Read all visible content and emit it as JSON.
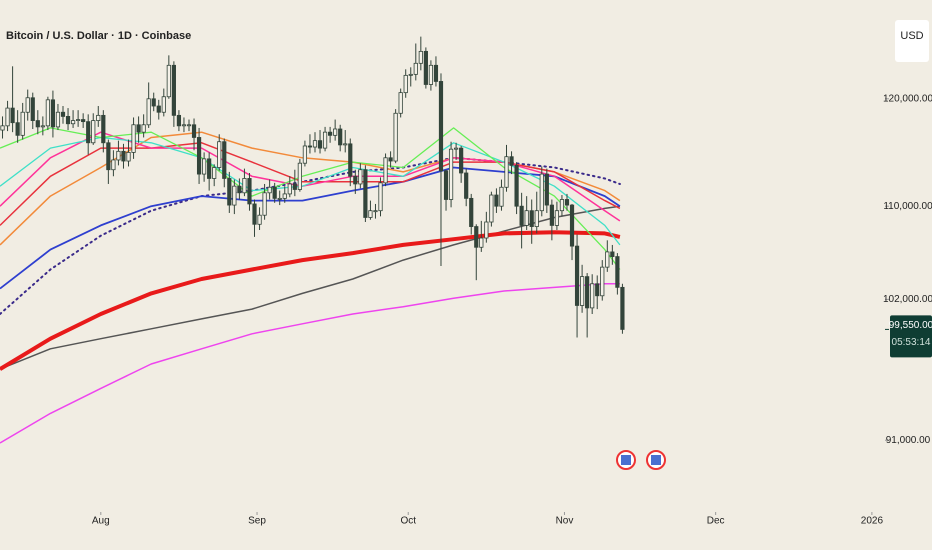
{
  "chart_data": {
    "type": "candlestick",
    "title": "Bitcoin / U.S. Dollar · 1D · Coinbase",
    "currency": "USD",
    "log_scale": true,
    "xlim": [
      0,
      175.6
    ],
    "xticks": [
      {
        "value": 20,
        "label": "Aug"
      },
      {
        "value": 51,
        "label": "Sep"
      },
      {
        "value": 81,
        "label": "Oct"
      },
      {
        "value": 112,
        "label": "Nov"
      },
      {
        "value": 142,
        "label": "Dec"
      },
      {
        "value": 173,
        "label": "2026"
      }
    ],
    "ylim": [
      86000,
      130000
    ],
    "yticks": [
      {
        "value": 120000,
        "label": "120,000.00"
      },
      {
        "value": 110000,
        "label": "110,000.00"
      },
      {
        "value": 102000,
        "label": "102,000.00"
      },
      {
        "value": 91000,
        "label": "91,000.00"
      }
    ],
    "candles": {
      "up_color": "#f4f1e8",
      "down_color": "#33443a",
      "open": [
        117000,
        117400,
        119100,
        117700,
        116500,
        118700,
        120100,
        117900,
        117300,
        117400,
        119900,
        117300,
        118700,
        118300,
        117600,
        117900,
        118000,
        117800,
        115800,
        117900,
        118400,
        115800,
        113300,
        114200,
        115000,
        114100,
        114900,
        117500,
        116800,
        117500,
        120000,
        119300,
        118700,
        120200,
        123300,
        118400,
        117400,
        117500,
        117500,
        116300,
        112900,
        114300,
        112500,
        113500,
        115900,
        112500,
        110100,
        111800,
        111200,
        112500,
        110200,
        108400,
        109200,
        111200,
        111700,
        110700,
        110700,
        111100,
        112000,
        111500,
        113900,
        115500,
        115400,
        116000,
        115300,
        116800,
        116500,
        117100,
        115600,
        115700,
        112700,
        112000,
        113300,
        109000,
        109600,
        109600,
        112100,
        114400,
        114100,
        118600,
        120600,
        122300,
        122400,
        123500,
        124700,
        121400,
        123300,
        121700,
        113200,
        110600,
        115200,
        115300,
        113000,
        110700,
        108200,
        106400,
        107200,
        108600,
        111000,
        110000,
        111700,
        114500,
        113700,
        110000,
        108300,
        109600,
        108200,
        109600,
        112900,
        110100,
        108300,
        109600,
        110600,
        110100,
        106500,
        101500,
        103900,
        101300,
        103300,
        102300,
        104700,
        106000,
        105600,
        103000
      ],
      "high": [
        118300,
        119800,
        123200,
        118900,
        119600,
        120900,
        120600,
        118900,
        118300,
        120200,
        120800,
        119500,
        119300,
        119100,
        118900,
        118900,
        118600,
        118500,
        118600,
        119300,
        118900,
        116100,
        115100,
        116000,
        115700,
        116100,
        118200,
        118300,
        118500,
        121600,
        120600,
        119900,
        121000,
        124300,
        123700,
        118900,
        118200,
        118000,
        118100,
        117200,
        114900,
        114900,
        113800,
        116600,
        116200,
        113100,
        112400,
        112500,
        113400,
        113000,
        110600,
        109900,
        112000,
        112400,
        112100,
        111400,
        111800,
        112700,
        113300,
        114300,
        116000,
        116600,
        116800,
        117000,
        117300,
        117300,
        118000,
        117500,
        117000,
        116200,
        113300,
        113900,
        113700,
        110500,
        110200,
        112600,
        114800,
        115000,
        119000,
        121000,
        122900,
        123100,
        125500,
        126200,
        125100,
        123800,
        124200,
        122500,
        113300,
        115900,
        115800,
        115500,
        113400,
        111100,
        108400,
        108700,
        109500,
        111300,
        111600,
        112400,
        115600,
        115000,
        114000,
        111200,
        110900,
        110600,
        111300,
        113600,
        113400,
        110600,
        110400,
        111000,
        111100,
        110200,
        107500,
        104900,
        104200,
        104100,
        104000,
        105300,
        107000,
        106600,
        105900,
        103300
      ],
      "low": [
        116200,
        116900,
        116800,
        115800,
        116100,
        117900,
        117100,
        116600,
        116500,
        117000,
        116300,
        117000,
        117600,
        117000,
        117200,
        117300,
        117200,
        114700,
        115600,
        117300,
        114900,
        112000,
        112700,
        113700,
        113400,
        113600,
        114300,
        115800,
        116300,
        117200,
        118800,
        118000,
        118300,
        120000,
        117300,
        116900,
        116800,
        116900,
        115100,
        112000,
        112200,
        111400,
        111800,
        113200,
        111700,
        109400,
        109300,
        110600,
        110900,
        109600,
        107300,
        107900,
        108800,
        110600,
        110300,
        110100,
        110300,
        110800,
        110900,
        111300,
        113600,
        114800,
        114900,
        114800,
        115000,
        115800,
        116000,
        115000,
        114900,
        111800,
        111100,
        111600,
        108600,
        108800,
        108900,
        109100,
        111800,
        113500,
        113900,
        118200,
        120100,
        121200,
        121800,
        122800,
        121000,
        120800,
        121200,
        104800,
        109600,
        109900,
        114200,
        112100,
        110000,
        107500,
        103600,
        106000,
        106800,
        108200,
        109400,
        109600,
        111300,
        112900,
        109300,
        106300,
        107900,
        106700,
        107600,
        109100,
        109400,
        107000,
        107900,
        109100,
        109600,
        105300,
        98900,
        100900,
        98900,
        100800,
        101200,
        101900,
        104300,
        104900,
        102400,
        99200
      ],
      "close": [
        117400,
        119100,
        117700,
        116500,
        118700,
        120100,
        117900,
        117300,
        117400,
        119900,
        117300,
        118700,
        118300,
        117600,
        117900,
        118000,
        117800,
        115800,
        117900,
        118400,
        115800,
        113300,
        114200,
        115000,
        114100,
        114900,
        117500,
        116800,
        117500,
        120000,
        119300,
        118700,
        120200,
        123300,
        118400,
        117400,
        117500,
        117500,
        116300,
        112900,
        114300,
        112500,
        113500,
        115900,
        112500,
        110100,
        111800,
        111200,
        112500,
        110200,
        108400,
        109200,
        111200,
        111700,
        110700,
        110700,
        111100,
        112000,
        111500,
        113900,
        115500,
        115400,
        116000,
        115300,
        116800,
        116500,
        117100,
        115600,
        115700,
        112700,
        112000,
        113300,
        109000,
        109600,
        109600,
        112100,
        114400,
        114100,
        118600,
        120600,
        122300,
        122400,
        123500,
        124700,
        121400,
        123300,
        121700,
        113200,
        110600,
        115200,
        115300,
        113000,
        110700,
        108200,
        106400,
        107200,
        108600,
        111000,
        110000,
        111700,
        114500,
        113700,
        110000,
        108300,
        109600,
        108200,
        109600,
        112900,
        110100,
        108300,
        109600,
        110600,
        110100,
        106500,
        101500,
        103900,
        101300,
        103300,
        102300,
        104700,
        106000,
        105600,
        103000,
        99550
      ]
    },
    "series": [
      {
        "color": "#ee44ee",
        "width": 1.5,
        "x": [
          0,
          10,
          20,
          30,
          40,
          50,
          60,
          70,
          80,
          90,
          100,
          110,
          120,
          123
        ],
        "values": [
          90800,
          93000,
          94900,
          96800,
          98000,
          99200,
          100000,
          100800,
          101400,
          102100,
          102700,
          103000,
          103300,
          103300
        ]
      },
      {
        "color": "#555555",
        "width": 1.5,
        "x": [
          0,
          10,
          20,
          30,
          40,
          50,
          60,
          70,
          80,
          90,
          100,
          110,
          120,
          123
        ],
        "values": [
          96400,
          98000,
          98800,
          99600,
          100400,
          101200,
          102500,
          103700,
          105300,
          106600,
          107800,
          109000,
          109800,
          110000
        ]
      },
      {
        "color": "#e81a1a",
        "width": 4,
        "x": [
          0,
          10,
          20,
          30,
          40,
          50,
          60,
          70,
          80,
          90,
          100,
          110,
          120,
          123
        ],
        "values": [
          96400,
          98800,
          100800,
          102500,
          103700,
          104500,
          105300,
          105900,
          106600,
          107100,
          107600,
          107700,
          107600,
          107300
        ]
      },
      {
        "color": "#3a2a8a",
        "width": 2,
        "style": "dotted",
        "x": [
          0,
          10,
          20,
          30,
          40,
          50,
          60,
          70,
          80,
          90,
          100,
          110,
          120,
          123
        ],
        "values": [
          100800,
          104500,
          107400,
          109600,
          110900,
          111400,
          112200,
          113100,
          113500,
          114400,
          114000,
          113500,
          112500,
          112000
        ]
      },
      {
        "color": "#2e3fcf",
        "width": 1.8,
        "x": [
          0,
          10,
          20,
          30,
          40,
          50,
          60,
          70,
          80,
          90,
          100,
          110,
          120,
          123
        ],
        "values": [
          102900,
          106200,
          108300,
          110000,
          110900,
          110500,
          110500,
          111400,
          112200,
          113500,
          113100,
          112700,
          110900,
          110000
        ]
      },
      {
        "color": "#f28a3a",
        "width": 1.5,
        "x": [
          0,
          10,
          20,
          30,
          40,
          50,
          60,
          70,
          80,
          90,
          100,
          110,
          120,
          123
        ],
        "values": [
          106600,
          110900,
          113500,
          116300,
          116800,
          115300,
          114400,
          114000,
          113100,
          114400,
          114000,
          113100,
          111400,
          110500
        ]
      },
      {
        "color": "#e8323c",
        "width": 1.5,
        "x": [
          0,
          10,
          20,
          30,
          40,
          50,
          60,
          70,
          80,
          90,
          100,
          110,
          120,
          123
        ],
        "values": [
          108300,
          112700,
          115300,
          115300,
          115800,
          114000,
          112200,
          112200,
          112200,
          114000,
          114000,
          113100,
          110500,
          109800
        ]
      },
      {
        "color": "#ff3399",
        "width": 1.5,
        "x": [
          0,
          10,
          20,
          30,
          40,
          50,
          60,
          70,
          80,
          90,
          100,
          110,
          120,
          123
        ],
        "values": [
          110000,
          114400,
          116800,
          115300,
          115300,
          112700,
          111800,
          112700,
          112700,
          114400,
          114000,
          112700,
          109600,
          108700
        ]
      },
      {
        "color": "#3fe0c8",
        "width": 1.3,
        "x": [
          0,
          10,
          20,
          30,
          40,
          50,
          60,
          70,
          80,
          90,
          100,
          110,
          120,
          123
        ],
        "values": [
          111800,
          115300,
          116300,
          115800,
          114400,
          111400,
          111800,
          113500,
          112700,
          115800,
          114000,
          111800,
          108300,
          106600
        ]
      },
      {
        "color": "#66ee55",
        "width": 1.3,
        "x": [
          0,
          10,
          20,
          30,
          40,
          50,
          60,
          70,
          80,
          90,
          100,
          110,
          120,
          123
        ],
        "values": [
          115300,
          117200,
          116300,
          116800,
          114400,
          110900,
          112700,
          114000,
          113500,
          117200,
          113500,
          110900,
          106200,
          104500
        ]
      }
    ],
    "last_price": {
      "value": 99550,
      "label": "99,550.00"
    },
    "countdown": "05:53:14"
  }
}
